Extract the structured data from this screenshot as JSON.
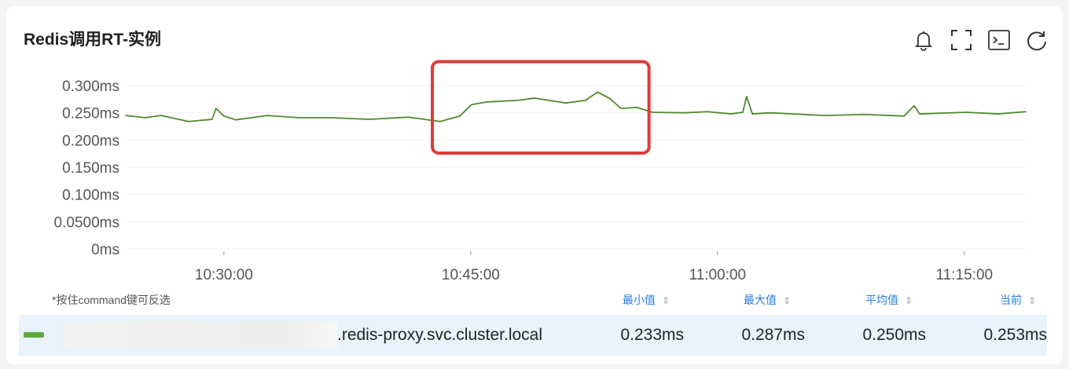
{
  "title": "Redis调用RT-实例",
  "toolbar": {
    "icons": [
      "bell-icon",
      "fullscreen-icon",
      "terminal-icon",
      "refresh-icon"
    ]
  },
  "chart_data": {
    "type": "line",
    "y_ticks": [
      "0ms",
      "0.0500ms",
      "0.100ms",
      "0.150ms",
      "0.200ms",
      "0.250ms",
      "0.300ms"
    ],
    "y_tick_values": [
      0,
      0.05,
      0.1,
      0.15,
      0.2,
      0.25,
      0.3
    ],
    "ylim": [
      0,
      0.3
    ],
    "x_ticks": [
      "10:30:00",
      "10:45:00",
      "11:00:00",
      "11:15:00"
    ],
    "xlim": [
      "10:24:02",
      "11:18:44"
    ],
    "grid": true,
    "series": [
      {
        "name": ".redis-proxy.svc.cluster.local",
        "color": "#4f8a2e",
        "x": [
          "10:24:02",
          "10:25:13",
          "10:26:11",
          "10:27:51",
          "10:29:17",
          "10:29:31",
          "10:30:00",
          "10:30:43",
          "10:32:38",
          "10:34:32",
          "10:36:27",
          "10:38:50",
          "10:41:14",
          "10:42:11",
          "10:43:08",
          "10:44:20",
          "10:45:03",
          "10:46:01",
          "10:47:55",
          "10:48:52",
          "10:50:47",
          "10:51:59",
          "10:52:42",
          "10:53:25",
          "10:54:08",
          "10:55:05",
          "10:56:02",
          "10:57:57",
          "10:59:23",
          "11:00:49",
          "11:01:32",
          "11:01:46",
          "11:02:07",
          "11:03:13",
          "11:06:33",
          "11:08:56",
          "11:11:20",
          "11:11:57",
          "11:12:17",
          "11:15:09",
          "11:17:04",
          "11:18:44"
        ],
        "y": [
          0.245,
          0.241,
          0.245,
          0.234,
          0.238,
          0.258,
          0.244,
          0.237,
          0.245,
          0.241,
          0.241,
          0.238,
          0.242,
          0.238,
          0.234,
          0.244,
          0.265,
          0.27,
          0.273,
          0.277,
          0.268,
          0.273,
          0.288,
          0.277,
          0.258,
          0.26,
          0.251,
          0.25,
          0.252,
          0.248,
          0.251,
          0.28,
          0.248,
          0.25,
          0.245,
          0.247,
          0.244,
          0.263,
          0.248,
          0.251,
          0.248,
          0.252
        ]
      }
    ],
    "highlight": {
      "x_start": "10:42:40",
      "x_end": "10:55:50",
      "y_start": 0.176,
      "y_end": 0.344,
      "color": "#e03a3a"
    }
  },
  "legend": {
    "hint": "*按住command键可反选",
    "columns": [
      "最小值",
      "最大值",
      "平均值",
      "当前"
    ],
    "rows": [
      {
        "name": ".redis-proxy.svc.cluster.local",
        "min": "0.233ms",
        "max": "0.287ms",
        "avg": "0.250ms",
        "current": "0.253ms"
      }
    ]
  }
}
